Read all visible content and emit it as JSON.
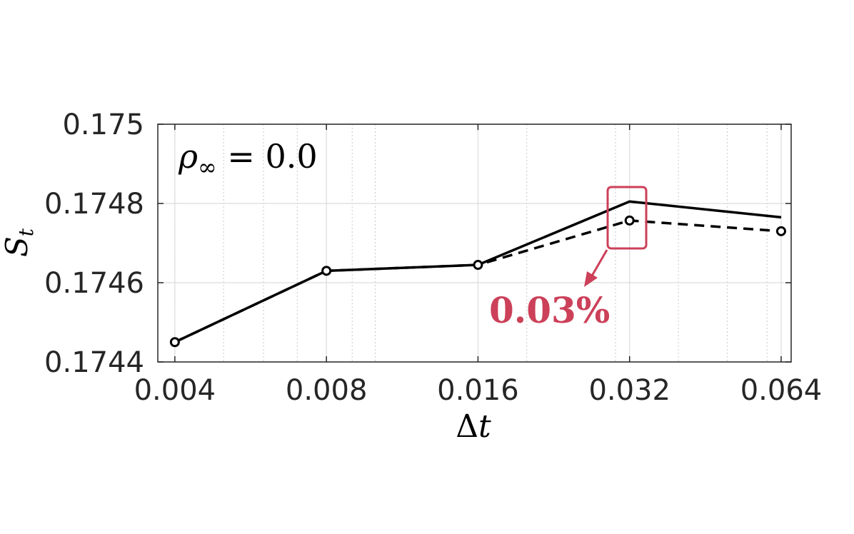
{
  "chart_data": {
    "type": "line",
    "xscale": "log2",
    "x": [
      0.004,
      0.008,
      0.016,
      0.032,
      0.064
    ],
    "x_tick_labels": [
      "0.004",
      "0.008",
      "0.016",
      "0.032",
      "0.064"
    ],
    "y_ticks": [
      0.1744,
      0.1746,
      0.1748,
      0.175
    ],
    "y_tick_labels": [
      "0.1744",
      "0.1746",
      "0.1748",
      "0.175"
    ],
    "ylim": [
      0.1744,
      0.175
    ],
    "xlabel_symbol": "Δ",
    "xlabel_var": "t",
    "ylabel_var": "S",
    "ylabel_sub": "t",
    "grid": true,
    "series": [
      {
        "style": "solid",
        "marker": "none",
        "color": "#000000",
        "values": [
          0.17445,
          0.17463,
          0.174645,
          0.174805,
          0.174765
        ]
      },
      {
        "style": "dashed",
        "marker": "circle",
        "color": "#000000",
        "values": [
          0.17445,
          0.17463,
          0.174645,
          0.174757,
          0.17473
        ]
      }
    ],
    "annotations": [
      {
        "text_var": "ρ",
        "text_sub": "∞",
        "text_rest": " = 0.0",
        "location": "top-left"
      },
      {
        "text": "0.03%",
        "color": "#cc4059",
        "target_x": 0.032
      }
    ]
  }
}
